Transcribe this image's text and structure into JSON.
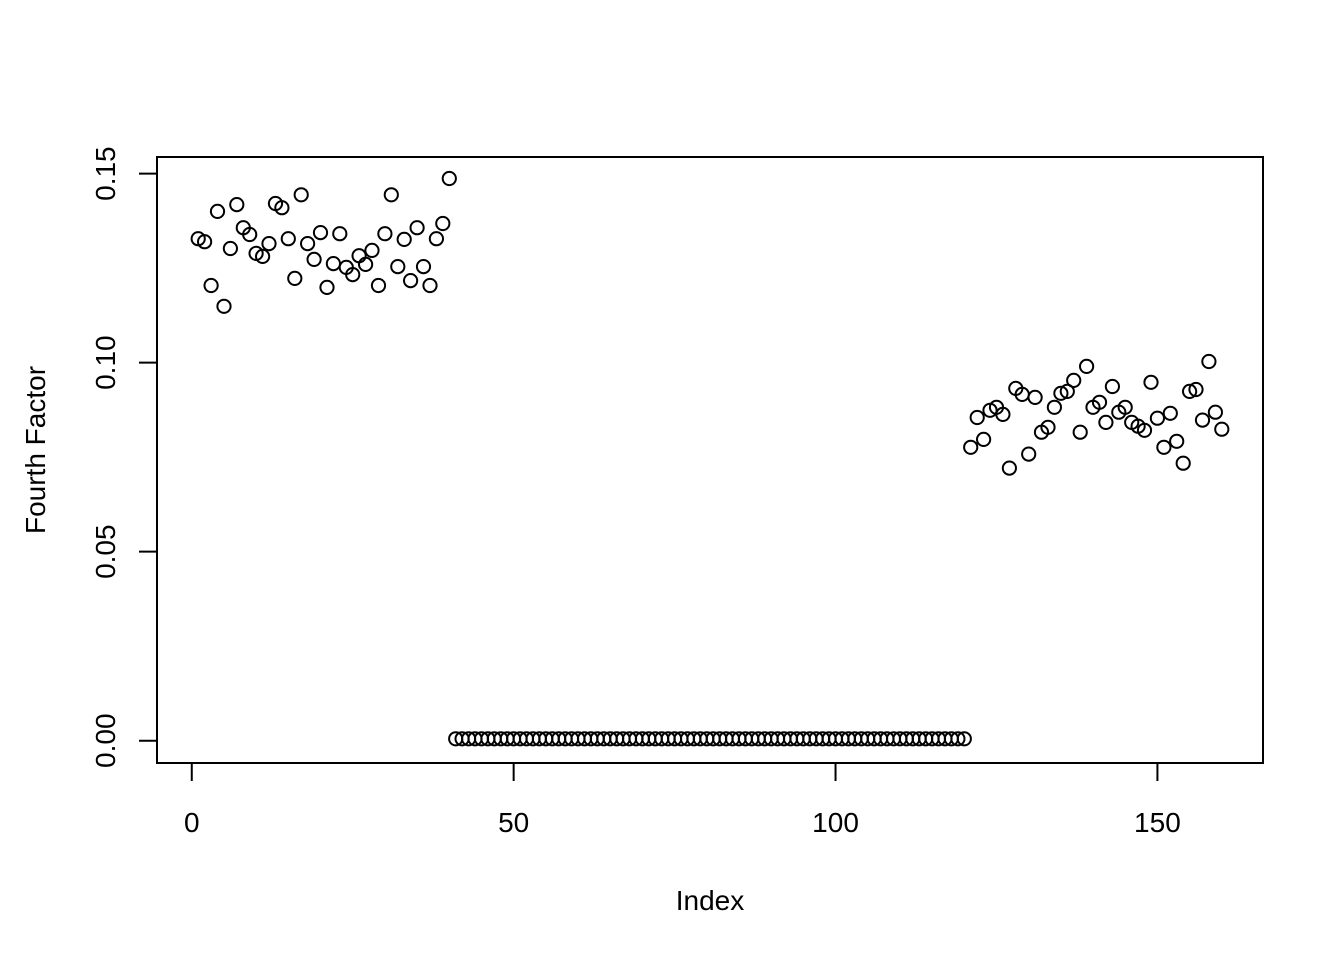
{
  "figure": {
    "background_color": "#ffffff",
    "foreground_color": "#000000"
  },
  "chart_data": {
    "type": "scatter",
    "title": "",
    "xlabel": "Index",
    "ylabel": "Fourth Factor",
    "marker": "open-circle",
    "marker_color": "#000000",
    "grid": false,
    "legend": null,
    "xlim": [
      -5.4,
      166.4
    ],
    "ylim": [
      -0.0059,
      0.1544
    ],
    "x_tick_values": [
      0,
      50,
      100,
      150
    ],
    "x_tick_labels": [
      "0",
      "50",
      "100",
      "150"
    ],
    "y_tick_values": [
      0.0,
      0.05,
      0.1,
      0.15
    ],
    "y_tick_labels": [
      "0.00",
      "0.05",
      "0.10",
      "0.15"
    ],
    "x": [
      1,
      2,
      3,
      4,
      5,
      6,
      7,
      8,
      9,
      10,
      11,
      12,
      13,
      14,
      15,
      16,
      17,
      18,
      19,
      20,
      21,
      22,
      23,
      24,
      25,
      26,
      27,
      28,
      29,
      30,
      31,
      32,
      33,
      34,
      35,
      36,
      37,
      38,
      39,
      40,
      41,
      42,
      43,
      44,
      45,
      46,
      47,
      48,
      49,
      50,
      51,
      52,
      53,
      54,
      55,
      56,
      57,
      58,
      59,
      60,
      61,
      62,
      63,
      64,
      65,
      66,
      67,
      68,
      69,
      70,
      71,
      72,
      73,
      74,
      75,
      76,
      77,
      78,
      79,
      80,
      81,
      82,
      83,
      84,
      85,
      86,
      87,
      88,
      89,
      90,
      91,
      92,
      93,
      94,
      95,
      96,
      97,
      98,
      99,
      100,
      101,
      102,
      103,
      104,
      105,
      106,
      107,
      108,
      109,
      110,
      111,
      112,
      113,
      114,
      115,
      116,
      117,
      118,
      119,
      120,
      121,
      122,
      123,
      124,
      125,
      126,
      127,
      128,
      129,
      130,
      131,
      132,
      133,
      134,
      135,
      136,
      137,
      138,
      139,
      140,
      141,
      142,
      143,
      144,
      145,
      146,
      147,
      148,
      149,
      150,
      151,
      152,
      153,
      154,
      155,
      156,
      157,
      158,
      159,
      160
    ],
    "y": [
      0.1328,
      0.132,
      0.1204,
      0.14,
      0.1149,
      0.1302,
      0.1418,
      0.1357,
      0.1339,
      0.1289,
      0.1281,
      0.1315,
      0.1421,
      0.141,
      0.1328,
      0.1223,
      0.1444,
      0.1315,
      0.1273,
      0.1344,
      0.1199,
      0.1262,
      0.1341,
      0.1252,
      0.1233,
      0.1283,
      0.126,
      0.1297,
      0.1204,
      0.1341,
      0.1444,
      0.1254,
      0.1326,
      0.1217,
      0.1357,
      0.1254,
      0.1204,
      0.1328,
      0.1368,
      0.1487,
      0.0005,
      0.0005,
      0.0005,
      0.0005,
      0.0005,
      0.0005,
      0.0005,
      0.0005,
      0.0005,
      0.0005,
      0.0005,
      0.0005,
      0.0005,
      0.0005,
      0.0005,
      0.0005,
      0.0005,
      0.0005,
      0.0005,
      0.0005,
      0.0005,
      0.0005,
      0.0005,
      0.0005,
      0.0005,
      0.0005,
      0.0005,
      0.0005,
      0.0005,
      0.0005,
      0.0005,
      0.0005,
      0.0005,
      0.0005,
      0.0005,
      0.0005,
      0.0005,
      0.0005,
      0.0005,
      0.0005,
      0.0005,
      0.0005,
      0.0005,
      0.0005,
      0.0005,
      0.0005,
      0.0005,
      0.0005,
      0.0005,
      0.0005,
      0.0005,
      0.0005,
      0.0005,
      0.0005,
      0.0005,
      0.0005,
      0.0005,
      0.0005,
      0.0005,
      0.0005,
      0.0005,
      0.0005,
      0.0005,
      0.0005,
      0.0005,
      0.0005,
      0.0005,
      0.0005,
      0.0005,
      0.0005,
      0.0005,
      0.0005,
      0.0005,
      0.0005,
      0.0005,
      0.0005,
      0.0005,
      0.0005,
      0.0005,
      0.0005,
      0.0776,
      0.0855,
      0.0797,
      0.0874,
      0.0882,
      0.0863,
      0.0721,
      0.0932,
      0.0916,
      0.0758,
      0.0908,
      0.0816,
      0.0829,
      0.0882,
      0.0919,
      0.0924,
      0.0953,
      0.0816,
      0.099,
      0.0882,
      0.0895,
      0.0842,
      0.0937,
      0.0869,
      0.0882,
      0.0842,
      0.0832,
      0.0821,
      0.0948,
      0.0853,
      0.0776,
      0.0866,
      0.0792,
      0.0734,
      0.0924,
      0.0929,
      0.0848,
      0.1003,
      0.0869,
      0.0824
    ]
  }
}
